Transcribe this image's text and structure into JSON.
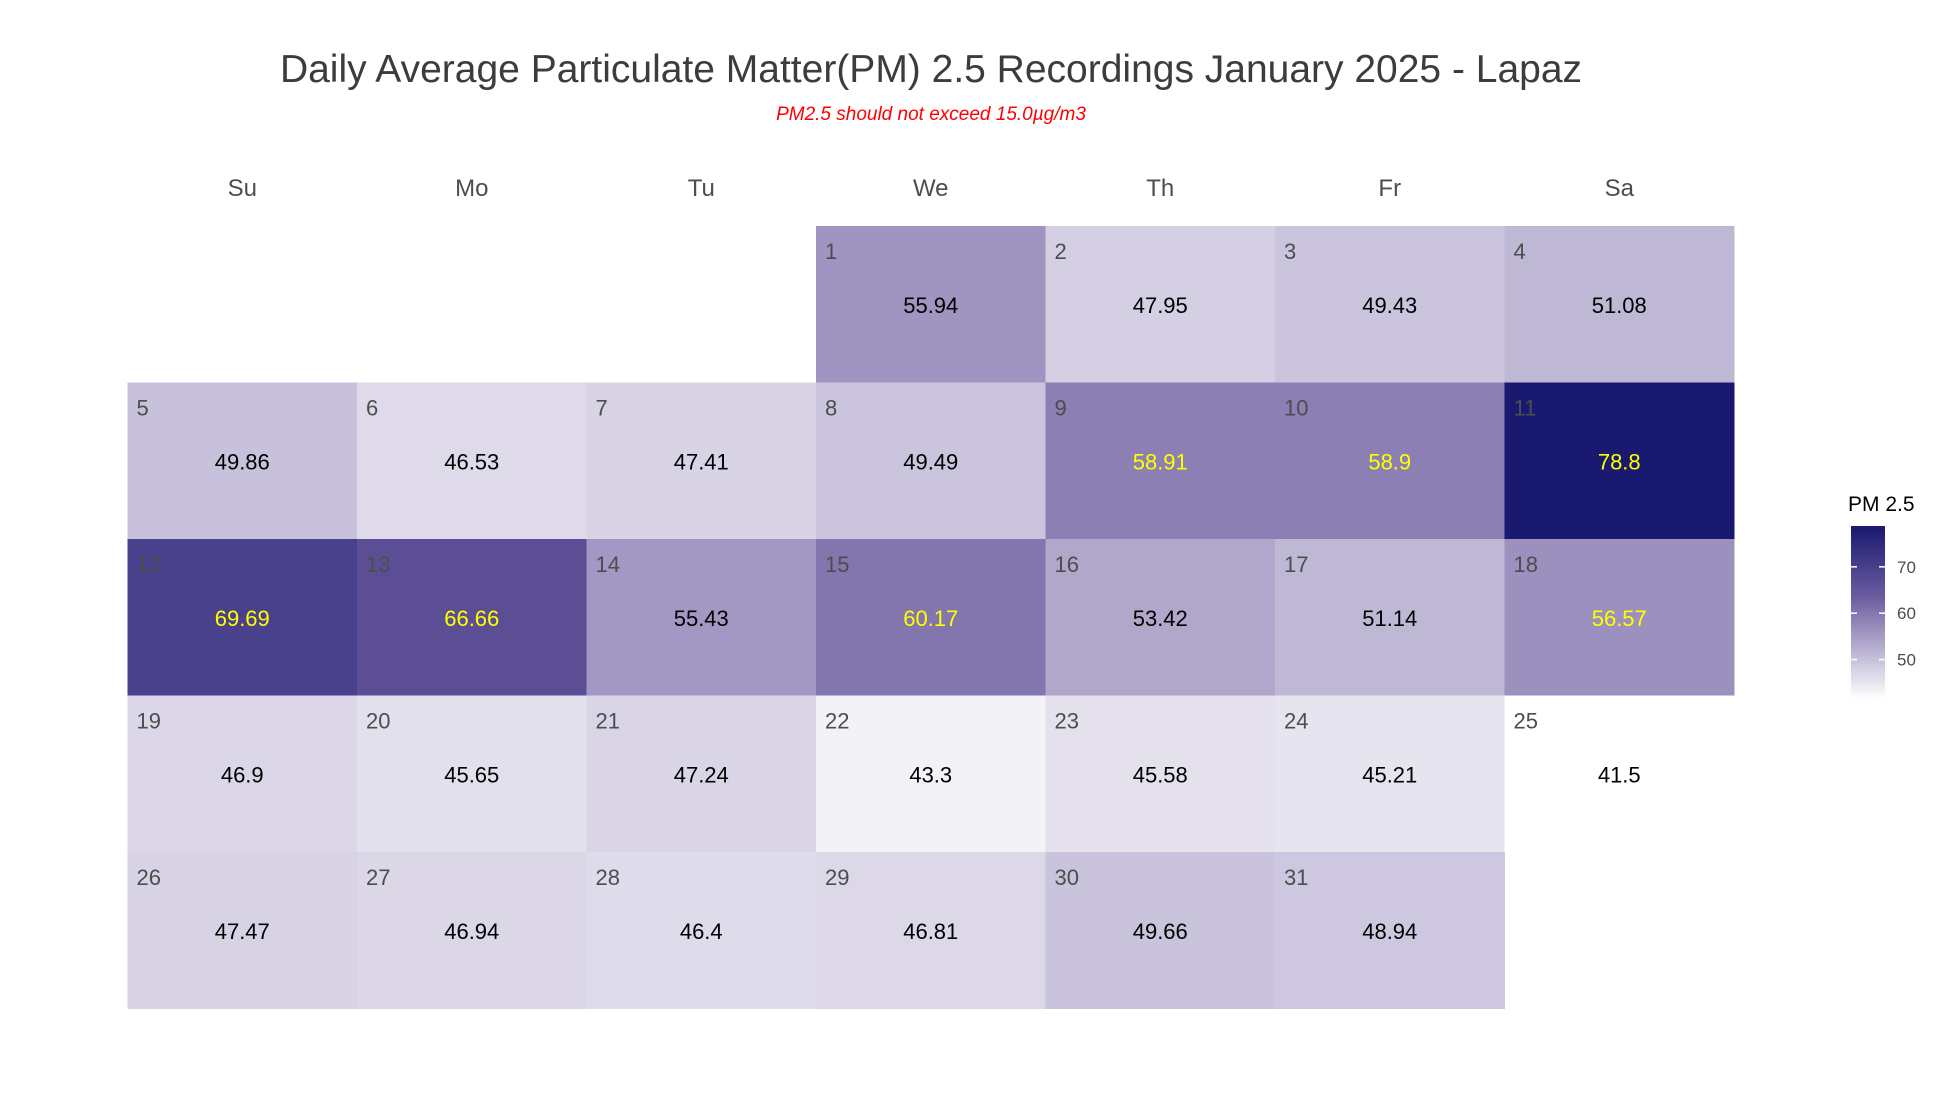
{
  "chart_data": {
    "type": "heatmap",
    "title": "Daily Average Particulate Matter(PM) 2.5 Recordings January 2025 -  Lapaz",
    "subtitle": "PM2.5 should not exceed 15.0µg/m3",
    "weekdays": [
      "Su",
      "Mo",
      "Tu",
      "We",
      "Th",
      "Fr",
      "Sa"
    ],
    "first_weekday_index": 3,
    "days": [
      {
        "day": 1,
        "label": "55.94",
        "value": 55.94
      },
      {
        "day": 2,
        "label": "47.95",
        "value": 47.95
      },
      {
        "day": 3,
        "label": "49.43",
        "value": 49.43
      },
      {
        "day": 4,
        "label": "51.08",
        "value": 51.08
      },
      {
        "day": 5,
        "label": "49.86",
        "value": 49.86
      },
      {
        "day": 6,
        "label": "46.53",
        "value": 46.53
      },
      {
        "day": 7,
        "label": "47.41",
        "value": 47.41
      },
      {
        "day": 8,
        "label": "49.49",
        "value": 49.49
      },
      {
        "day": 9,
        "label": "58.91",
        "value": 58.91
      },
      {
        "day": 10,
        "label": "58.9",
        "value": 58.9
      },
      {
        "day": 11,
        "label": "78.8",
        "value": 78.8
      },
      {
        "day": 12,
        "label": "69.69",
        "value": 69.69
      },
      {
        "day": 13,
        "label": "66.66",
        "value": 66.66
      },
      {
        "day": 14,
        "label": "55.43",
        "value": 55.43
      },
      {
        "day": 15,
        "label": "60.17",
        "value": 60.17
      },
      {
        "day": 16,
        "label": "53.42",
        "value": 53.42
      },
      {
        "day": 17,
        "label": "51.14",
        "value": 51.14
      },
      {
        "day": 18,
        "label": "56.57",
        "value": 56.57
      },
      {
        "day": 19,
        "label": "46.9",
        "value": 46.9
      },
      {
        "day": 20,
        "label": "45.65",
        "value": 45.65
      },
      {
        "day": 21,
        "label": "47.24",
        "value": 47.24
      },
      {
        "day": 22,
        "label": "43.3",
        "value": 43.3
      },
      {
        "day": 23,
        "label": "45.58",
        "value": 45.58
      },
      {
        "day": 24,
        "label": "45.21",
        "value": 45.21
      },
      {
        "day": 25,
        "label": "41.5",
        "value": 41.5
      },
      {
        "day": 26,
        "label": "47.47",
        "value": 47.47
      },
      {
        "day": 27,
        "label": "46.94",
        "value": 46.94
      },
      {
        "day": 28,
        "label": "46.4",
        "value": 46.4
      },
      {
        "day": 29,
        "label": "46.81",
        "value": 46.81
      },
      {
        "day": 30,
        "label": "49.66",
        "value": 49.66
      },
      {
        "day": 31,
        "label": "48.94",
        "value": 48.94
      }
    ],
    "highlight_threshold": 56.5,
    "color_scale": {
      "low": "#ffffff",
      "mid": "#6a5a9e",
      "high": "#191970",
      "min": 41.5,
      "max": 78.8
    },
    "text_colors": {
      "normal": "#000000",
      "highlight": "#ffff00",
      "daynum": "#4d4d4d"
    },
    "legend": {
      "title": "PM 2.5",
      "ticks": [
        50,
        60,
        70
      ],
      "placement": "right"
    }
  }
}
